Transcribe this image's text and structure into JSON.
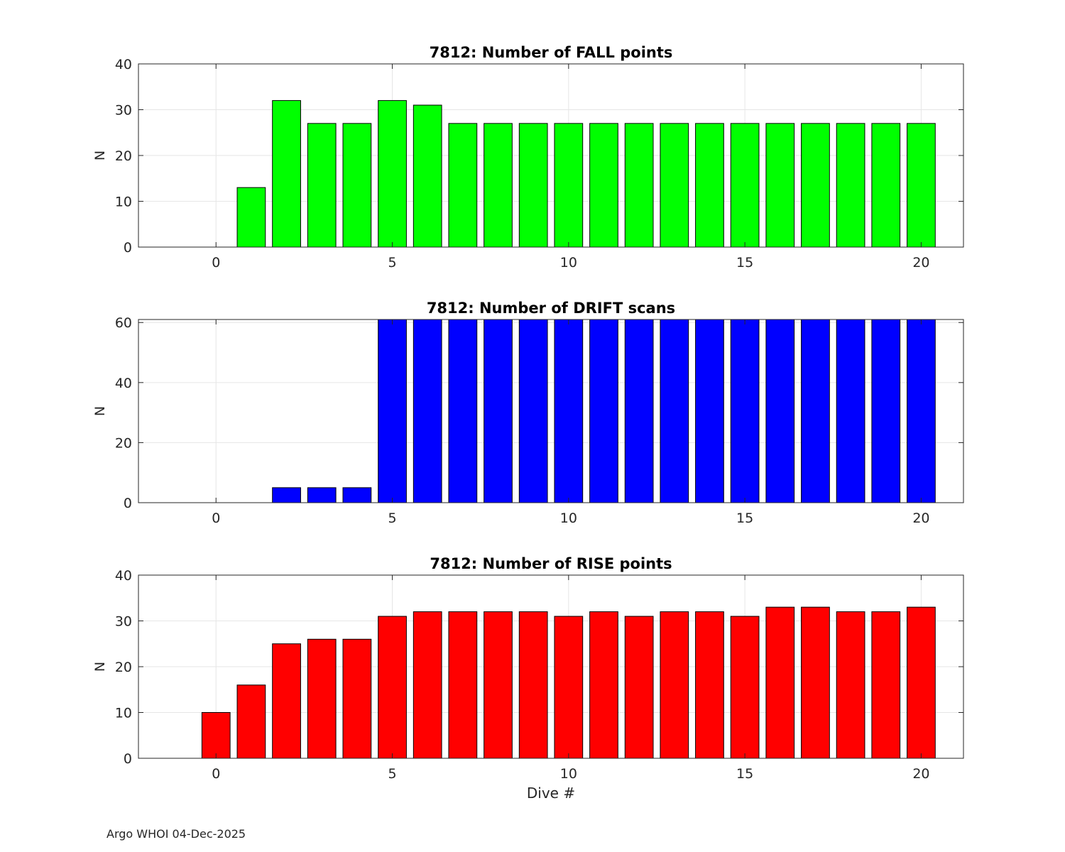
{
  "figure": {
    "footer": "Argo WHOI 04-Dec-2025",
    "grid": true
  },
  "chart_data": [
    {
      "type": "bar",
      "title": "7812: Number of FALL points",
      "xlabel": "",
      "ylabel": "N",
      "color": "#00ff00",
      "xlim": [
        -2.2,
        21.2
      ],
      "ylim": [
        0,
        40
      ],
      "xticks": [
        0,
        5,
        10,
        15,
        20
      ],
      "yticks": [
        0,
        10,
        20,
        30,
        40
      ],
      "x": [
        0,
        1,
        2,
        3,
        4,
        5,
        6,
        7,
        8,
        9,
        10,
        11,
        12,
        13,
        14,
        15,
        16,
        17,
        18,
        19,
        20
      ],
      "values": [
        0,
        13,
        32,
        27,
        27,
        32,
        31,
        27,
        27,
        27,
        27,
        27,
        27,
        27,
        27,
        27,
        27,
        27,
        27,
        27,
        27
      ]
    },
    {
      "type": "bar",
      "title": "7812: Number of DRIFT scans",
      "xlabel": "",
      "ylabel": "N",
      "color": "#0000ff",
      "xlim": [
        -2.2,
        21.2
      ],
      "ylim": [
        0,
        61
      ],
      "xticks": [
        0,
        5,
        10,
        15,
        20
      ],
      "yticks": [
        0,
        20,
        40,
        60
      ],
      "x": [
        0,
        1,
        2,
        3,
        4,
        5,
        6,
        7,
        8,
        9,
        10,
        11,
        12,
        13,
        14,
        15,
        16,
        17,
        18,
        19,
        20
      ],
      "values": [
        0,
        0,
        5,
        5,
        5,
        61,
        61,
        61,
        61,
        61,
        61,
        61,
        61,
        61,
        61,
        61,
        61,
        61,
        61,
        61,
        61
      ]
    },
    {
      "type": "bar",
      "title": "7812: Number of RISE points",
      "xlabel": "Dive #",
      "ylabel": "N",
      "color": "#ff0000",
      "xlim": [
        -2.2,
        21.2
      ],
      "ylim": [
        0,
        40
      ],
      "xticks": [
        0,
        5,
        10,
        15,
        20
      ],
      "yticks": [
        0,
        10,
        20,
        30,
        40
      ],
      "x": [
        0,
        1,
        2,
        3,
        4,
        5,
        6,
        7,
        8,
        9,
        10,
        11,
        12,
        13,
        14,
        15,
        16,
        17,
        18,
        19,
        20
      ],
      "values": [
        10,
        16,
        25,
        26,
        26,
        31,
        32,
        32,
        32,
        32,
        31,
        32,
        31,
        32,
        32,
        31,
        33,
        33,
        32,
        32,
        33
      ]
    }
  ]
}
